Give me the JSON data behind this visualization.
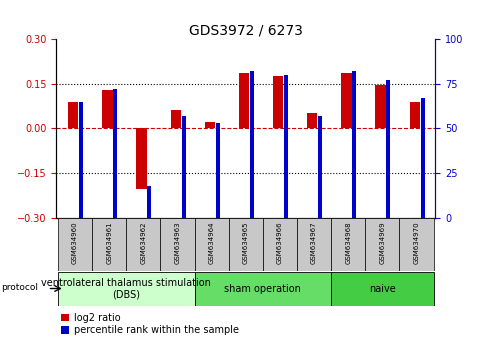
{
  "title": "GDS3972 / 6273",
  "samples": [
    "GSM634960",
    "GSM634961",
    "GSM634962",
    "GSM634963",
    "GSM634964",
    "GSM634965",
    "GSM634966",
    "GSM634967",
    "GSM634968",
    "GSM634969",
    "GSM634970"
  ],
  "log2_ratio": [
    0.09,
    0.13,
    -0.205,
    0.06,
    0.02,
    0.185,
    0.175,
    0.05,
    0.185,
    0.145,
    0.09
  ],
  "percentile_rank": [
    65,
    72,
    18,
    57,
    53,
    82,
    80,
    57,
    82,
    77,
    67
  ],
  "ylim_left": [
    -0.3,
    0.3
  ],
  "ylim_right": [
    0,
    100
  ],
  "yticks_left": [
    -0.3,
    -0.15,
    0,
    0.15,
    0.3
  ],
  "yticks_right": [
    0,
    25,
    50,
    75,
    100
  ],
  "hlines_dotted": [
    -0.15,
    0.15
  ],
  "bar_color_red": "#cc0000",
  "bar_color_blue": "#0000cc",
  "groups": [
    {
      "label": "ventrolateral thalamus stimulation\n(DBS)",
      "start": 0,
      "end": 3,
      "color": "#ccffcc"
    },
    {
      "label": "sham operation",
      "start": 4,
      "end": 7,
      "color": "#66dd66"
    },
    {
      "label": "naive",
      "start": 8,
      "end": 10,
      "color": "#44cc44"
    }
  ],
  "protocol_label": "protocol",
  "legend_red": "log2 ratio",
  "legend_blue": "percentile rank within the sample",
  "title_fontsize": 10,
  "tick_fontsize": 7,
  "sample_fontsize": 5,
  "group_fontsize": 7
}
